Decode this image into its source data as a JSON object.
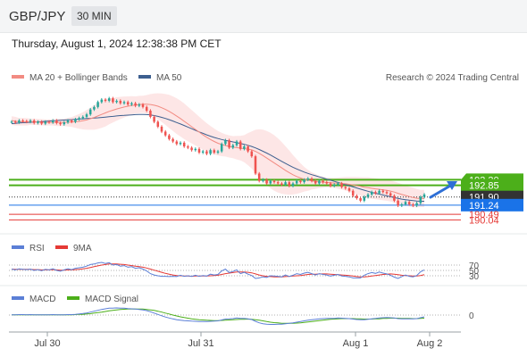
{
  "header": {
    "symbol": "GBP/JPY",
    "timeframe": "30 MIN"
  },
  "timestamp": "Thursday, August 1, 2024 12:38:38 PM CET",
  "legend": {
    "ma20": "MA 20 + Bollinger Bands",
    "ma50": "MA 50",
    "copyright": "Research © 2024 Trading Central"
  },
  "colors": {
    "bull": "#26a69a",
    "bear": "#ef5350",
    "ma20": "#f28b82",
    "ma50": "#3d5f8f",
    "band": "#fde3e3",
    "green": "#4caf1a",
    "blue": "#1a73e8",
    "red": "#e53935"
  },
  "chart_data": [
    {
      "type": "candlestick",
      "x_labels": [
        "Jul 30",
        "Jul 31",
        "Aug 1",
        "Aug 2"
      ],
      "price_levels": [
        {
          "value": 193.3,
          "label": "193.30",
          "color": "#4caf1a"
        },
        {
          "value": 192.85,
          "label": "192.85",
          "color": "#4caf1a"
        },
        {
          "value": 191.9,
          "label": "191.90",
          "color": "#333333"
        },
        {
          "value": 191.24,
          "label": "191.24",
          "color": "#1a73e8"
        },
        {
          "value": 190.49,
          "label": "190.49",
          "color": "#e53935"
        },
        {
          "value": 190.04,
          "label": "190.04",
          "color": "#e53935"
        }
      ],
      "y_range": [
        189.2,
        201.0
      ],
      "closes": [
        198.0,
        197.95,
        198.1,
        198.05,
        198.0,
        198.1,
        197.9,
        198.0,
        197.85,
        198.0,
        197.95,
        198.1,
        197.9,
        197.8,
        197.95,
        198.1,
        198.0,
        198.2,
        198.3,
        198.4,
        198.6,
        199.0,
        199.2,
        199.6,
        199.8,
        199.7,
        199.9,
        199.6,
        199.7,
        199.5,
        199.6,
        199.4,
        199.5,
        199.3,
        199.4,
        199.2,
        198.9,
        198.4,
        198.0,
        197.6,
        197.2,
        196.9,
        196.6,
        196.4,
        196.2,
        196.3,
        196.0,
        195.9,
        195.7,
        195.8,
        195.5,
        195.6,
        195.4,
        195.7,
        195.5,
        195.6,
        196.2,
        196.5,
        195.9,
        196.1,
        196.4,
        195.8,
        196.0,
        195.6,
        195.2,
        193.8,
        193.2,
        193.3,
        193.0,
        193.2,
        193.1,
        193.0,
        192.9,
        193.1,
        192.8,
        193.0,
        193.2,
        193.1,
        193.3,
        193.4,
        193.2,
        193.0,
        193.2,
        193.1,
        193.0,
        192.8,
        192.9,
        193.0,
        192.7,
        192.6,
        192.4,
        192.0,
        191.8,
        191.6,
        191.9,
        192.1,
        192.3,
        192.2,
        192.4,
        192.3,
        192.2,
        192.0,
        191.6,
        191.2,
        191.3,
        191.5,
        191.3,
        191.2,
        191.4,
        191.9,
        192.1
      ],
      "ma20": [
        198.1,
        198.05,
        198.0,
        198.0,
        198.0,
        198.0,
        198.0,
        197.98,
        197.97,
        197.95,
        197.95,
        197.95,
        197.95,
        197.95,
        197.95,
        197.97,
        197.98,
        198.0,
        198.03,
        198.08,
        198.15,
        198.25,
        198.35,
        198.47,
        198.6,
        198.72,
        198.84,
        198.94,
        199.04,
        199.12,
        199.2,
        199.26,
        199.32,
        199.36,
        199.4,
        199.42,
        199.42,
        199.4,
        199.34,
        199.26,
        199.14,
        199.0,
        198.84,
        198.66,
        198.46,
        198.26,
        198.04,
        197.82,
        197.6,
        197.38,
        197.16,
        196.94,
        196.74,
        196.56,
        196.4,
        196.26,
        196.16,
        196.08,
        196.0,
        195.94,
        195.9,
        195.86,
        195.82,
        195.78,
        195.72,
        195.6,
        195.44,
        195.26,
        195.06,
        194.86,
        194.66,
        194.46,
        194.26,
        194.06,
        193.88,
        193.7,
        193.56,
        193.44,
        193.34,
        193.26,
        193.2,
        193.16,
        193.12,
        193.1,
        193.08,
        193.06,
        193.04,
        193.02,
        193.0,
        192.97,
        192.93,
        192.88,
        192.82,
        192.76,
        192.7,
        192.65,
        192.6,
        192.56,
        192.52,
        192.48,
        192.44,
        192.38,
        192.3,
        192.2,
        192.1,
        192.02,
        191.94,
        191.86,
        191.8,
        191.78,
        191.78
      ],
      "band_width": [
        0.35,
        0.35,
        0.3,
        0.3,
        0.3,
        0.25,
        0.25,
        0.25,
        0.25,
        0.25,
        0.25,
        0.25,
        0.3,
        0.3,
        0.3,
        0.35,
        0.4,
        0.5,
        0.6,
        0.7,
        0.8,
        0.9,
        1.0,
        1.05,
        1.1,
        1.1,
        1.05,
        1.0,
        0.95,
        0.9,
        0.85,
        0.8,
        0.75,
        0.7,
        0.7,
        0.7,
        0.75,
        0.85,
        0.95,
        1.05,
        1.15,
        1.25,
        1.35,
        1.4,
        1.45,
        1.45,
        1.45,
        1.4,
        1.35,
        1.3,
        1.25,
        1.2,
        1.15,
        1.1,
        1.05,
        1.0,
        0.95,
        0.9,
        0.9,
        0.9,
        0.95,
        1.0,
        1.1,
        1.3,
        1.5,
        1.75,
        1.95,
        2.1,
        2.2,
        2.25,
        2.25,
        2.2,
        2.1,
        1.95,
        1.8,
        1.6,
        1.4,
        1.2,
        1.0,
        0.85,
        0.7,
        0.6,
        0.5,
        0.45,
        0.4,
        0.4,
        0.4,
        0.45,
        0.5,
        0.55,
        0.6,
        0.65,
        0.7,
        0.75,
        0.8,
        0.85,
        0.85,
        0.85,
        0.85,
        0.85,
        0.85,
        0.85,
        0.85,
        0.85,
        0.85,
        0.8,
        0.8,
        0.8,
        0.75,
        0.7,
        0.7
      ],
      "ma50": [
        197.85,
        197.87,
        197.9,
        197.92,
        197.94,
        197.96,
        197.98,
        198.0,
        198.02,
        198.04,
        198.06,
        198.08,
        198.1,
        198.12,
        198.14,
        198.16,
        198.18,
        198.2,
        198.22,
        198.24,
        198.26,
        198.28,
        198.3,
        198.32,
        198.35,
        198.38,
        198.41,
        198.44,
        198.47,
        198.5,
        198.52,
        198.54,
        198.56,
        198.58,
        198.6,
        198.6,
        198.58,
        198.55,
        198.5,
        198.44,
        198.36,
        198.27,
        198.17,
        198.06,
        197.94,
        197.82,
        197.7,
        197.57,
        197.44,
        197.31,
        197.18,
        197.06,
        196.94,
        196.83,
        196.73,
        196.64,
        196.56,
        196.49,
        196.43,
        196.37,
        196.31,
        196.24,
        196.17,
        196.09,
        196.0,
        195.88,
        195.75,
        195.61,
        195.46,
        195.3,
        195.13,
        194.96,
        194.79,
        194.62,
        194.46,
        194.31,
        194.17,
        194.04,
        193.92,
        193.81,
        193.71,
        193.62,
        193.53,
        193.44,
        193.35,
        193.26,
        193.17,
        193.08,
        192.99,
        192.9,
        192.81,
        192.72,
        192.63,
        192.54,
        192.45,
        192.36,
        192.28,
        192.2,
        192.13,
        192.06,
        191.99,
        191.92,
        191.85,
        191.79,
        191.73,
        191.68,
        191.64,
        191.6,
        191.57,
        191.55,
        191.55
      ]
    },
    {
      "type": "line",
      "name": "RSI",
      "signal_name": "9MA",
      "levels": [
        70,
        50,
        30
      ],
      "range": [
        0,
        100
      ],
      "values": [
        55,
        52,
        56,
        54,
        53,
        55,
        50,
        53,
        49,
        54,
        52,
        56,
        50,
        47,
        52,
        56,
        53,
        58,
        60,
        62,
        66,
        72,
        74,
        78,
        80,
        76,
        79,
        70,
        72,
        66,
        68,
        62,
        64,
        58,
        60,
        55,
        48,
        38,
        33,
        30,
        28,
        28,
        27,
        28,
        27,
        32,
        28,
        30,
        28,
        32,
        28,
        31,
        29,
        36,
        33,
        35,
        48,
        55,
        42,
        46,
        52,
        38,
        43,
        36,
        31,
        20,
        22,
        26,
        24,
        30,
        29,
        28,
        26,
        33,
        27,
        32,
        38,
        35,
        40,
        43,
        38,
        33,
        38,
        35,
        33,
        29,
        32,
        35,
        29,
        28,
        26,
        22,
        22,
        22,
        32,
        38,
        42,
        39,
        44,
        40,
        37,
        32,
        25,
        20,
        27,
        33,
        28,
        26,
        31,
        45,
        52
      ],
      "signal": [
        55,
        54,
        54,
        54,
        54,
        54,
        53,
        53,
        52,
        52,
        52,
        53,
        52,
        51,
        51,
        52,
        52,
        53,
        54,
        56,
        58,
        61,
        64,
        67,
        70,
        72,
        74,
        74,
        74,
        73,
        72,
        70,
        68,
        66,
        64,
        62,
        59,
        55,
        51,
        47,
        43,
        39,
        36,
        33,
        31,
        30,
        29,
        29,
        28,
        29,
        29,
        29,
        29,
        30,
        31,
        32,
        35,
        38,
        40,
        42,
        44,
        44,
        44,
        43,
        41,
        37,
        33,
        30,
        28,
        27,
        26,
        26,
        26,
        27,
        28,
        29,
        30,
        31,
        33,
        35,
        36,
        36,
        37,
        37,
        37,
        36,
        35,
        34,
        33,
        32,
        31,
        29,
        27,
        26,
        26,
        27,
        29,
        31,
        33,
        35,
        36,
        37,
        36,
        34,
        32,
        31,
        30,
        29,
        29,
        31,
        34
      ]
    },
    {
      "type": "line",
      "name": "MACD",
      "signal_name": "MACD Signal",
      "zero_label": "0",
      "range": [
        -0.9,
        0.9
      ],
      "values": [
        0.02,
        0.02,
        0.03,
        0.03,
        0.02,
        0.03,
        0.02,
        0.02,
        0.01,
        0.02,
        0.02,
        0.03,
        0.02,
        0.01,
        0.02,
        0.03,
        0.03,
        0.05,
        0.07,
        0.1,
        0.14,
        0.2,
        0.26,
        0.32,
        0.38,
        0.42,
        0.46,
        0.47,
        0.48,
        0.47,
        0.46,
        0.44,
        0.42,
        0.4,
        0.38,
        0.35,
        0.3,
        0.22,
        0.13,
        0.04,
        -0.05,
        -0.13,
        -0.2,
        -0.26,
        -0.31,
        -0.34,
        -0.37,
        -0.39,
        -0.41,
        -0.42,
        -0.43,
        -0.44,
        -0.44,
        -0.42,
        -0.41,
        -0.39,
        -0.33,
        -0.27,
        -0.26,
        -0.24,
        -0.2,
        -0.22,
        -0.22,
        -0.25,
        -0.3,
        -0.42,
        -0.52,
        -0.58,
        -0.62,
        -0.63,
        -0.63,
        -0.62,
        -0.61,
        -0.58,
        -0.56,
        -0.53,
        -0.48,
        -0.44,
        -0.39,
        -0.34,
        -0.31,
        -0.29,
        -0.26,
        -0.24,
        -0.23,
        -0.23,
        -0.22,
        -0.2,
        -0.21,
        -0.22,
        -0.24,
        -0.27,
        -0.3,
        -0.32,
        -0.31,
        -0.28,
        -0.25,
        -0.23,
        -0.2,
        -0.18,
        -0.17,
        -0.18,
        -0.2,
        -0.24,
        -0.26,
        -0.25,
        -0.25,
        -0.26,
        -0.24,
        -0.18,
        -0.12
      ],
      "signal": [
        0.02,
        0.02,
        0.02,
        0.02,
        0.02,
        0.02,
        0.02,
        0.02,
        0.02,
        0.02,
        0.02,
        0.02,
        0.02,
        0.02,
        0.02,
        0.02,
        0.02,
        0.03,
        0.04,
        0.05,
        0.07,
        0.09,
        0.13,
        0.16,
        0.2,
        0.24,
        0.28,
        0.32,
        0.35,
        0.37,
        0.39,
        0.4,
        0.41,
        0.41,
        0.41,
        0.4,
        0.38,
        0.35,
        0.31,
        0.26,
        0.2,
        0.13,
        0.07,
        0.0,
        -0.06,
        -0.12,
        -0.17,
        -0.21,
        -0.25,
        -0.28,
        -0.31,
        -0.33,
        -0.35,
        -0.36,
        -0.37,
        -0.37,
        -0.36,
        -0.35,
        -0.33,
        -0.32,
        -0.3,
        -0.29,
        -0.28,
        -0.27,
        -0.28,
        -0.31,
        -0.35,
        -0.39,
        -0.44,
        -0.48,
        -0.51,
        -0.53,
        -0.55,
        -0.56,
        -0.56,
        -0.55,
        -0.54,
        -0.52,
        -0.49,
        -0.46,
        -0.43,
        -0.4,
        -0.37,
        -0.34,
        -0.31,
        -0.29,
        -0.27,
        -0.25,
        -0.24,
        -0.24,
        -0.24,
        -0.24,
        -0.25,
        -0.26,
        -0.27,
        -0.27,
        -0.27,
        -0.26,
        -0.25,
        -0.23,
        -0.22,
        -0.21,
        -0.21,
        -0.21,
        -0.22,
        -0.23,
        -0.23,
        -0.24,
        -0.24,
        -0.23,
        -0.21
      ]
    }
  ]
}
